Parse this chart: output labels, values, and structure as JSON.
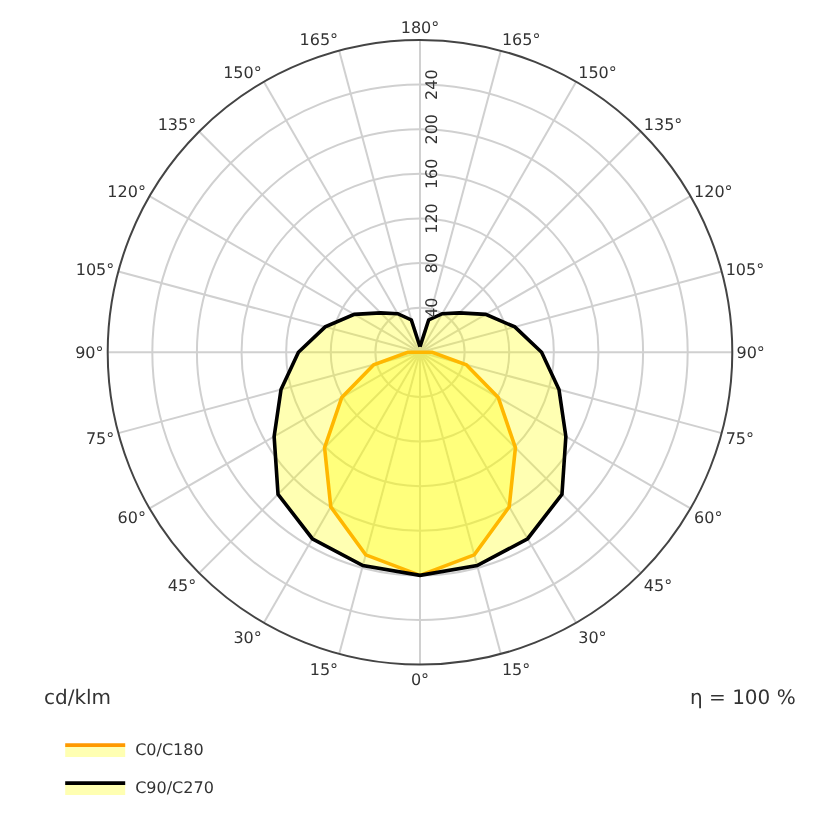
{
  "chart_data": {
    "type": "radar",
    "categories": [
      "180°",
      "165°",
      "150°",
      "135°",
      "120°",
      "105°",
      "90°",
      "75°",
      "60°",
      "45°",
      "30°",
      "15°",
      "0°",
      "15°",
      "30°",
      "45°",
      "60°",
      "75°",
      "90°",
      "105°",
      "120°",
      "135°",
      "150°",
      "165°"
    ],
    "series": [
      {
        "name": "C0/C180",
        "color": "#ff9900",
        "values": [
          0,
          0,
          0,
          0,
          0,
          0,
          11,
          43,
          81,
          121,
          160,
          188,
          200,
          188,
          160,
          121,
          81,
          43,
          11,
          0,
          0,
          0,
          0,
          0
        ]
      },
      {
        "name": "C90/C270",
        "color": "#000000",
        "values": [
          5,
          30,
          40,
          50,
          68,
          88,
          109,
          129,
          151,
          180,
          193,
          198,
          200,
          198,
          193,
          180,
          151,
          129,
          109,
          88,
          68,
          50,
          40,
          30
        ]
      }
    ],
    "ylim": [
      0,
      280
    ],
    "yticks": [
      40,
      80,
      120,
      160,
      200,
      240
    ],
    "grid": true,
    "legend": "bottom left",
    "marker": "none",
    "annotations": [
      "cd/klm",
      "η = 100 %"
    ]
  }
}
